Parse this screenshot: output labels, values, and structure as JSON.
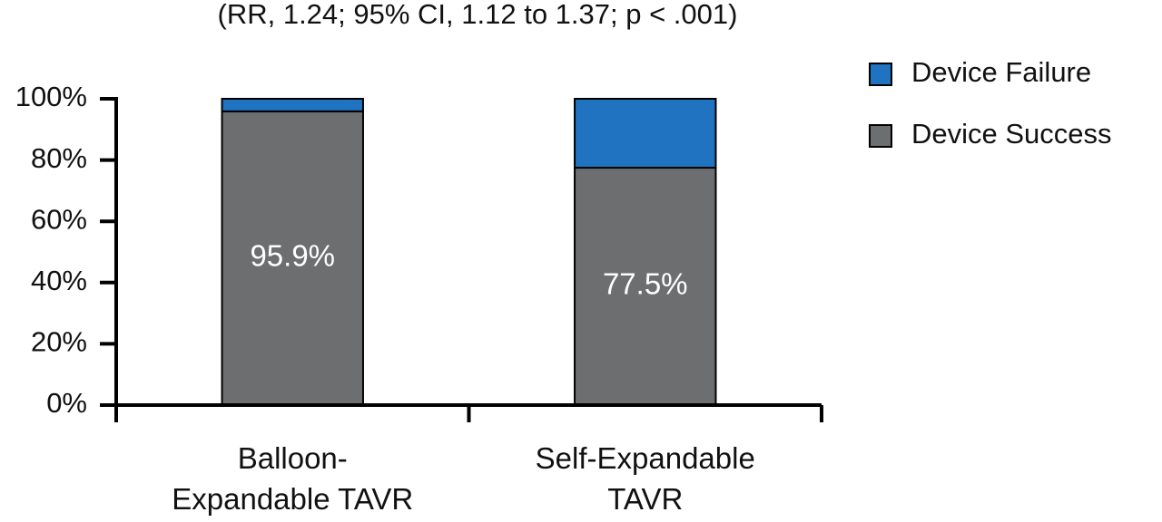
{
  "chart_data": {
    "type": "stacked_bar",
    "subtitle": "(RR, 1.24; 95% CI, 1.12 to 1.37; p < .001)",
    "categories": [
      "Balloon-\nExpandable TAVR",
      "Self-Expandable\nTAVR"
    ],
    "series": [
      {
        "name": "Device Success",
        "color": "#6d6e70",
        "values": [
          95.9,
          77.5
        ],
        "value_labels": [
          "95.9%",
          "77.5%"
        ]
      },
      {
        "name": "Device Failure",
        "color": "#1f73c1",
        "values": [
          4.1,
          22.5
        ]
      }
    ],
    "ylim": [
      0,
      100
    ],
    "yticks": [
      {
        "value": 0,
        "label": "0%"
      },
      {
        "value": 20,
        "label": "20%"
      },
      {
        "value": 40,
        "label": "40%"
      },
      {
        "value": 60,
        "label": "60%"
      },
      {
        "value": 80,
        "label": "80%"
      },
      {
        "value": 100,
        "label": "100%"
      }
    ],
    "legend": "top-right"
  }
}
